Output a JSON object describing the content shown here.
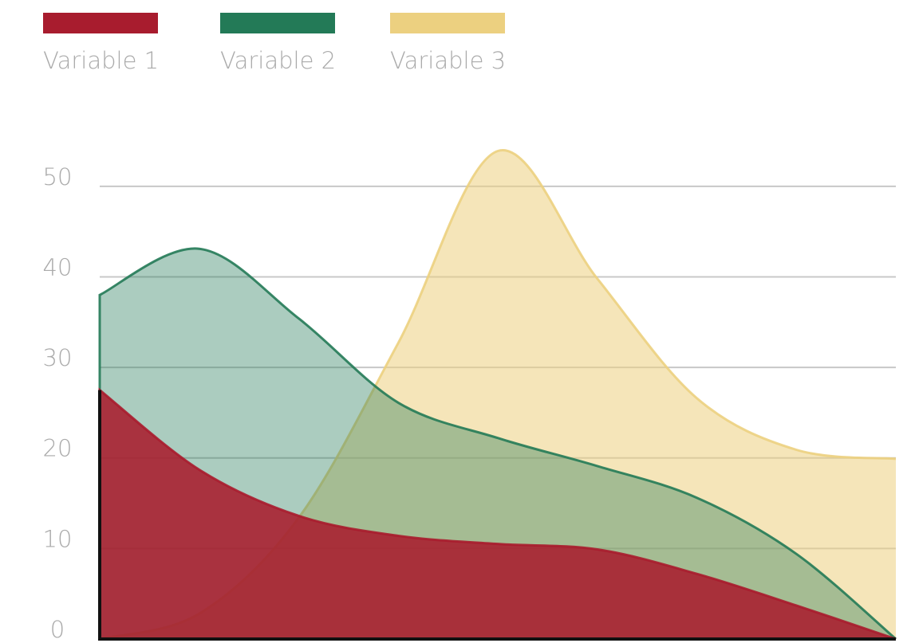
{
  "chart_data": {
    "type": "area",
    "categories": [
      null,
      null,
      null,
      null,
      null,
      null,
      null,
      null,
      null
    ],
    "series": [
      {
        "name": "Variable 1",
        "color": "#a81c2e",
        "values": [
          27.5,
          18.7,
          13.6,
          11.4,
          10.5,
          9.9,
          7.2,
          3.7,
          0
        ]
      },
      {
        "name": "Variable 2",
        "color": "#237a57",
        "values": [
          38,
          43.1,
          35.4,
          26.1,
          22.2,
          19.1,
          15.6,
          9.4,
          0
        ]
      },
      {
        "name": "Variable 3",
        "color": "#ecd080",
        "values": [
          0,
          2.8,
          13.4,
          32.7,
          53.9,
          39.8,
          26.6,
          20.9,
          19.9
        ]
      }
    ],
    "ylim": [
      0,
      55
    ],
    "yticks": [
      0,
      10,
      20,
      30,
      40,
      50
    ],
    "grid": true,
    "legend": "top-left"
  }
}
